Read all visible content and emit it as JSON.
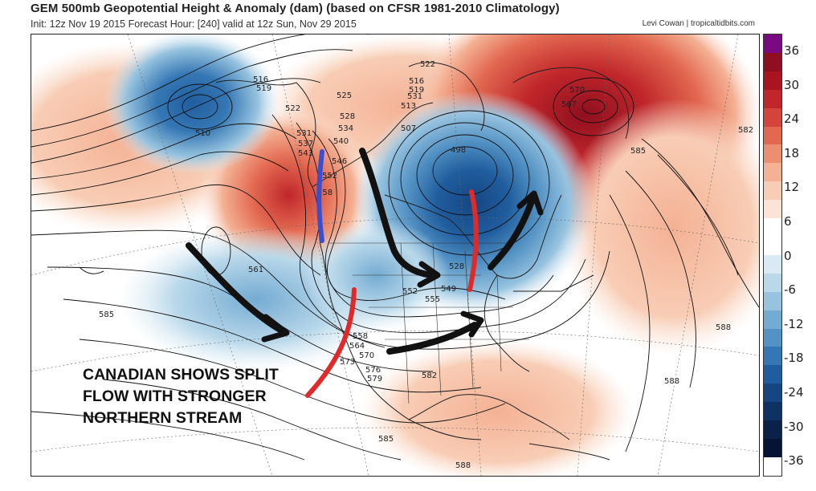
{
  "header": {
    "title": "GEM 500mb Geopotential Height & Anomaly (dam) (based on CFSR 1981-2010 Climatology)",
    "subtitle": "Init: 12z Nov 19 2015   Forecast Hour: [240]   valid at 12z Sun, Nov 29 2015",
    "credit": "Levi Cowan | tropicaltidbits.com"
  },
  "colorbar": {
    "labels": [
      "36",
      "30",
      "24",
      "18",
      "12",
      "6",
      "0",
      "-6",
      "-12",
      "-18",
      "-24",
      "-30",
      "-36"
    ],
    "colors": [
      "#7a0a82",
      "#8e0f1f",
      "#a9141f",
      "#c0262a",
      "#d4443a",
      "#e26850",
      "#ec8f70",
      "#f4b194",
      "#f8cdb5",
      "#fbe3d5",
      "#ffffff",
      "#ffffff",
      "#d9eaf4",
      "#b9d8ea",
      "#97c3df",
      "#74abd2",
      "#5392c4",
      "#3577b4",
      "#205d9e",
      "#154682",
      "#0f3265",
      "#0a2149",
      "#061433",
      "#ffffff"
    ]
  },
  "contour_labels": [
    "516",
    "519",
    "522",
    "525",
    "528",
    "531",
    "534",
    "537",
    "540",
    "543",
    "546",
    "552",
    "558",
    "510",
    "507",
    "498",
    "513",
    "531",
    "528",
    "549",
    "552",
    "555",
    "561",
    "558",
    "564",
    "570",
    "573",
    "576",
    "579",
    "582",
    "585",
    "585",
    "585",
    "588",
    "588",
    "588",
    "582",
    "570",
    "567",
    "522",
    "516",
    "519"
  ],
  "annotation": {
    "lines": [
      "CANADIAN SHOWS SPLIT",
      "FLOW WITH STRONGER",
      "NORTHERN STREAM"
    ]
  },
  "colors": {
    "ridge": "#e26850",
    "trough": "#3577b4",
    "arrow_black": "#111111",
    "arrow_red": "#e02a2a",
    "arrow_blue": "#3a4fd0"
  }
}
